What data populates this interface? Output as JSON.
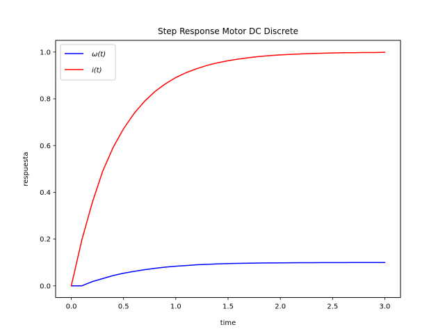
{
  "chart_data": {
    "type": "line",
    "title": "Step Response Motor DC Discrete",
    "xlabel": "time",
    "ylabel": "respuesta",
    "xlim": [
      -0.15,
      3.15
    ],
    "ylim": [
      -0.05,
      1.05
    ],
    "xticks": [
      0.0,
      0.5,
      1.0,
      1.5,
      2.0,
      2.5,
      3.0
    ],
    "xtick_labels": [
      "0.0",
      "0.5",
      "1.0",
      "1.5",
      "2.0",
      "2.5",
      "3.0"
    ],
    "yticks": [
      0.0,
      0.2,
      0.4,
      0.6,
      0.8,
      1.0
    ],
    "ytick_labels": [
      "0.0",
      "0.2",
      "0.4",
      "0.6",
      "0.8",
      "1.0"
    ],
    "grid": false,
    "legend_position": "top-left",
    "x": [
      0.0,
      0.1,
      0.2,
      0.3,
      0.4,
      0.5,
      0.6,
      0.7,
      0.8,
      0.9,
      1.0,
      1.1,
      1.2,
      1.3,
      1.4,
      1.5,
      1.6,
      1.7,
      1.8,
      1.9,
      2.0,
      2.1,
      2.2,
      2.3,
      2.4,
      2.5,
      2.6,
      2.7,
      2.8,
      2.9,
      3.0
    ],
    "series": [
      {
        "name": "ω(t)",
        "color": "#0000ff",
        "values": [
          0.0,
          0.0,
          0.018,
          0.031,
          0.044,
          0.054,
          0.062,
          0.069,
          0.075,
          0.08,
          0.084,
          0.087,
          0.09,
          0.092,
          0.094,
          0.0953,
          0.0962,
          0.097,
          0.0976,
          0.0981,
          0.0985,
          0.0988,
          0.099,
          0.0992,
          0.0994,
          0.0995,
          0.0996,
          0.0997,
          0.0998,
          0.0998,
          0.0999
        ]
      },
      {
        "name": "i(t)",
        "color": "#ff0000",
        "values": [
          0.0,
          0.195,
          0.355,
          0.49,
          0.592,
          0.672,
          0.737,
          0.789,
          0.831,
          0.864,
          0.891,
          0.912,
          0.929,
          0.943,
          0.954,
          0.963,
          0.97,
          0.976,
          0.981,
          0.985,
          0.988,
          0.99,
          0.992,
          0.994,
          0.995,
          0.996,
          0.997,
          0.997,
          0.998,
          0.998,
          0.999
        ]
      }
    ]
  }
}
